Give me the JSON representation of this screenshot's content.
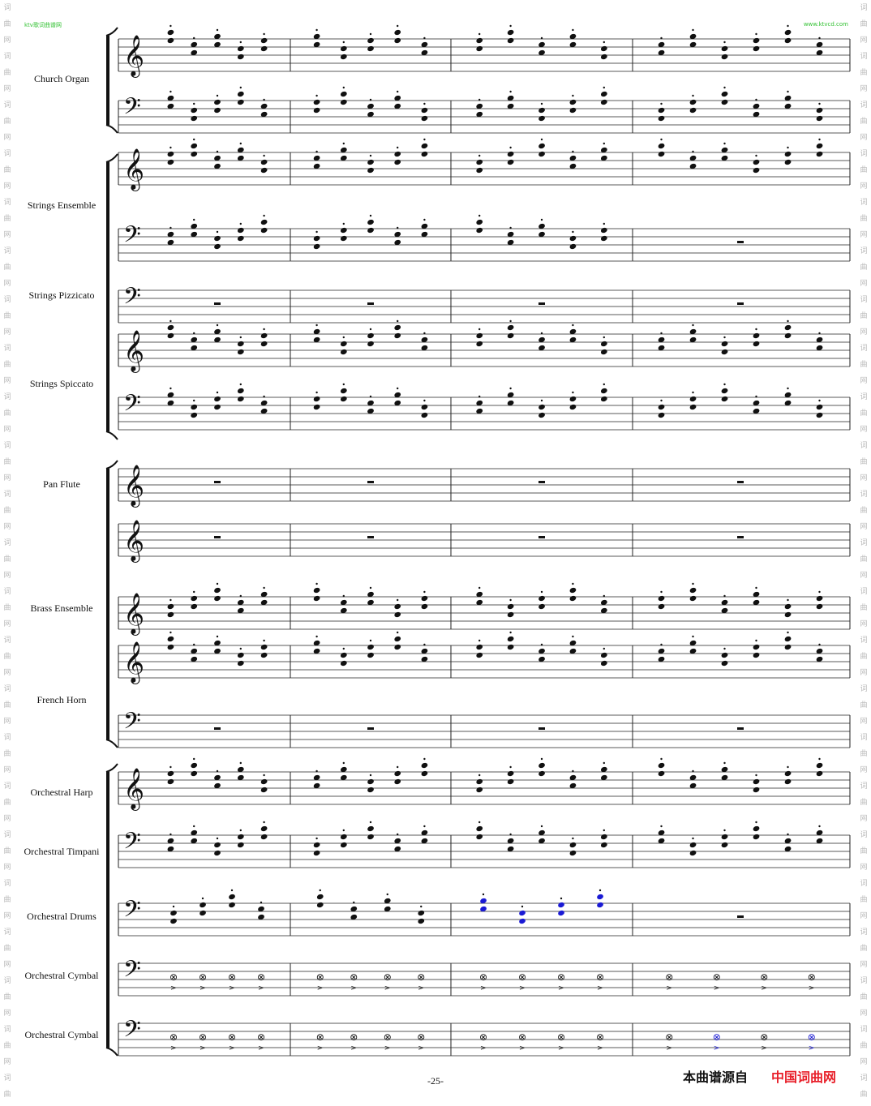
{
  "watermarks": {
    "top_left": "ktv歌词曲谱网",
    "top_right": "www.ktvcd.com",
    "side_glyphs": "词曲网"
  },
  "instruments": [
    "Church Organ",
    "Strings Ensemble",
    "Strings Pizzicato",
    "Strings Spiccato",
    "Pan Flute",
    "Brass Ensemble",
    "French Horn",
    "Orchestral Harp",
    "Orchestral Timpani",
    "Orchestral Drums",
    "Orchestral Cymbal",
    "Orchestral Cymbal"
  ],
  "page_number": "-25-",
  "footer": {
    "source_text": "本曲谱源自",
    "site_name": "中国词曲网"
  },
  "colors": {
    "staff_ink": "#111111",
    "highlight_notes": "#1a1ad4",
    "site_name": "#e8202a",
    "watermark": "#35c235"
  },
  "clefs": [
    "treble",
    "bass",
    "treble",
    "bass",
    "bass",
    "treble",
    "bass",
    "treble",
    "treble",
    "treble",
    "treble",
    "bass",
    "treble",
    "bass",
    "bass",
    "bass",
    "bass"
  ],
  "measure_count": 4
}
